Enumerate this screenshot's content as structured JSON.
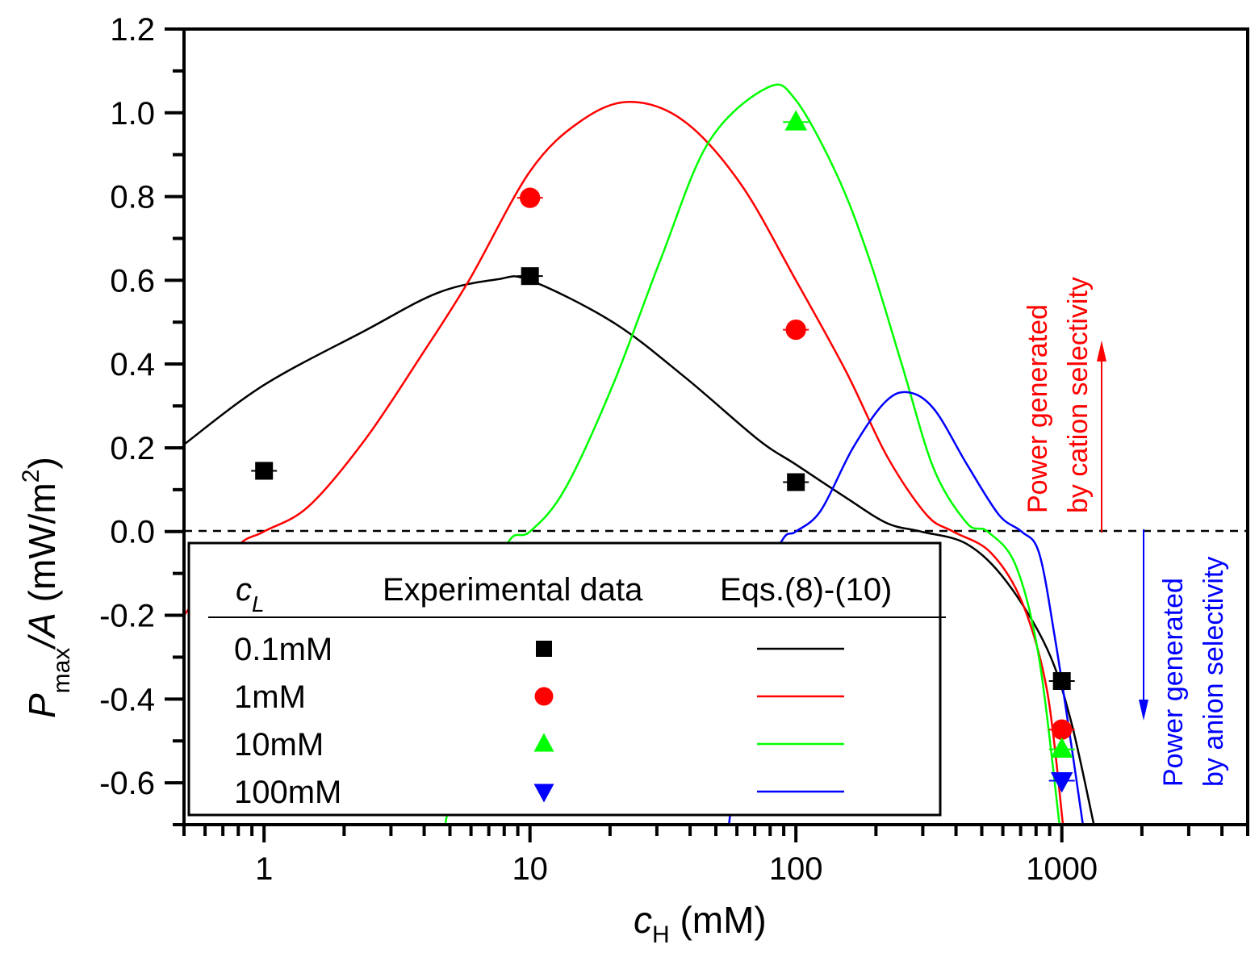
{
  "chart_data": {
    "type": "line",
    "title": "",
    "xlabel": {
      "main": "c",
      "sub": "H",
      "unit": " (mM)"
    },
    "ylabel": {
      "main": "P",
      "sub": "max",
      "rest": "/A",
      "unit": " (mW/m",
      "sup": "2",
      "close": ")"
    },
    "xscale": "log",
    "xlim": [
      0.5,
      5000
    ],
    "ylim": [
      -0.7,
      1.2
    ],
    "xticks": [
      1,
      10,
      100,
      1000
    ],
    "xtick_labels": [
      "1",
      "10",
      "100",
      "1000"
    ],
    "yticks": [
      -0.6,
      -0.4,
      -0.2,
      0.0,
      0.2,
      0.4,
      0.6,
      0.8,
      1.0,
      1.2
    ],
    "ytick_labels": [
      "-0.6",
      "-0.4",
      "-0.2",
      "0.0",
      "0.2",
      "0.4",
      "0.6",
      "0.8",
      "1.0",
      "1.2"
    ],
    "grid": false,
    "reference_line": {
      "y": 0,
      "style": "dashed",
      "color": "#000000"
    },
    "legend": {
      "placement": "bottom-left",
      "header": {
        "col1_main": "c",
        "col1_sub": "L",
        "col2": "Experimental data",
        "col3": "Eqs.(8)-(10)"
      },
      "entries": [
        {
          "label": "0.1mM",
          "marker": "square",
          "color": "#000000"
        },
        {
          "label": "1mM",
          "marker": "circle",
          "color": "#ff0000"
        },
        {
          "label": "10mM",
          "marker": "triangle-up",
          "color": "#00ff00"
        },
        {
          "label": "100mM",
          "marker": "triangle-down",
          "color": "#0000ff"
        }
      ]
    },
    "series": [
      {
        "name": "0.1mM",
        "color": "#000000",
        "marker": "square",
        "points": [
          {
            "x": 1,
            "y": 0.145
          },
          {
            "x": 10,
            "y": 0.61
          },
          {
            "x": 100,
            "y": 0.118
          },
          {
            "x": 1000,
            "y": -0.357
          }
        ],
        "curve": [
          [
            0.5,
            0.208
          ],
          [
            1,
            0.35
          ],
          [
            2.4,
            0.48
          ],
          [
            4.5,
            0.57
          ],
          [
            7.5,
            0.602
          ],
          [
            10,
            0.6
          ],
          [
            20.5,
            0.5
          ],
          [
            38,
            0.37
          ],
          [
            72,
            0.22
          ],
          [
            100,
            0.16
          ],
          [
            155,
            0.08
          ],
          [
            220,
            0.02
          ],
          [
            295,
            0.0
          ],
          [
            440,
            -0.03
          ],
          [
            620,
            -0.12
          ],
          [
            880,
            -0.28
          ],
          [
            1080,
            -0.45
          ],
          [
            1320,
            -0.7
          ]
        ]
      },
      {
        "name": "1mM",
        "color": "#ff0000",
        "marker": "circle",
        "points": [
          {
            "x": 10,
            "y": 0.797
          },
          {
            "x": 100,
            "y": 0.482
          },
          {
            "x": 1000,
            "y": -0.473
          }
        ],
        "curve": [
          [
            0.5,
            -0.2
          ],
          [
            0.78,
            -0.04
          ],
          [
            1,
            0.0
          ],
          [
            1.47,
            0.06
          ],
          [
            2.4,
            0.22
          ],
          [
            3.9,
            0.42
          ],
          [
            5.9,
            0.6
          ],
          [
            10,
            0.86
          ],
          [
            15.5,
            0.98
          ],
          [
            23.7,
            1.026
          ],
          [
            38,
            0.98
          ],
          [
            62,
            0.83
          ],
          [
            100,
            0.6
          ],
          [
            155,
            0.38
          ],
          [
            220,
            0.18
          ],
          [
            310,
            0.04
          ],
          [
            390,
            0.0
          ],
          [
            540,
            -0.05
          ],
          [
            710,
            -0.17
          ],
          [
            880,
            -0.38
          ],
          [
            1010,
            -0.7
          ]
        ]
      },
      {
        "name": "10mM",
        "color": "#00ff00",
        "marker": "triangle-up",
        "points": [
          {
            "x": 100,
            "y": 0.978
          },
          {
            "x": 1000,
            "y": -0.52
          }
        ],
        "curve": [
          [
            4.8,
            -0.7
          ],
          [
            6.8,
            -0.15
          ],
          [
            8.4,
            -0.02
          ],
          [
            10,
            0.0
          ],
          [
            13.5,
            0.1
          ],
          [
            20.5,
            0.35
          ],
          [
            31,
            0.65
          ],
          [
            47,
            0.93
          ],
          [
            78,
            1.06
          ],
          [
            100,
            1.03
          ],
          [
            143,
            0.85
          ],
          [
            189,
            0.65
          ],
          [
            250,
            0.4
          ],
          [
            330,
            0.15
          ],
          [
            440,
            0.02
          ],
          [
            525,
            0.0
          ],
          [
            670,
            -0.08
          ],
          [
            820,
            -0.3
          ],
          [
            980,
            -0.7
          ]
        ]
      },
      {
        "name": "100mM",
        "color": "#0000ff",
        "marker": "triangle-down",
        "points": [
          {
            "x": 1000,
            "y": -0.595
          }
        ],
        "curve": [
          [
            56,
            -0.7
          ],
          [
            72,
            -0.15
          ],
          [
            89,
            -0.02
          ],
          [
            100,
            0.0
          ],
          [
            124,
            0.05
          ],
          [
            164,
            0.2
          ],
          [
            217,
            0.31
          ],
          [
            267,
            0.332
          ],
          [
            333,
            0.29
          ],
          [
            440,
            0.16
          ],
          [
            580,
            0.04
          ],
          [
            705,
            0.0
          ],
          [
            820,
            -0.05
          ],
          [
            940,
            -0.25
          ],
          [
            1080,
            -0.5
          ],
          [
            1200,
            -0.7
          ]
        ]
      }
    ],
    "annotations": [
      {
        "line1": "Power generated",
        "line2": "by cation selectivity",
        "color": "#ff0000",
        "arrow": "up"
      },
      {
        "line1": "Power generated",
        "line2": "by anion selectivity",
        "color": "#0000ff",
        "arrow": "down"
      }
    ]
  }
}
